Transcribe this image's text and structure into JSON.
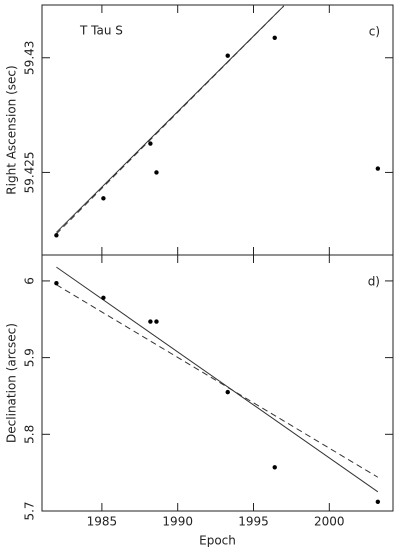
{
  "chart_data": [
    {
      "type": "scatter",
      "label": "T Tau S",
      "annotation": "c)",
      "ylabel": "Right Ascension (sec)",
      "x": [
        1982.0,
        1985.1,
        1988.2,
        1988.6,
        1993.3,
        1996.4,
        2003.2
      ],
      "values": [
        59.42226,
        59.42387,
        59.42626,
        59.425,
        59.43009,
        59.43087,
        59.42517
      ],
      "fits": [
        {
          "style": "solid",
          "x": [
            1982.0,
            1997.0
          ],
          "values": [
            59.42239,
            59.43226
          ]
        },
        {
          "style": "dashed",
          "x": [
            1982.0,
            1997.0
          ],
          "values": [
            59.42232,
            59.43226
          ]
        }
      ],
      "xlim": [
        1981.05,
        2004.2
      ],
      "xticks": [
        1985,
        1990,
        1995,
        2000
      ],
      "show_xtick_labels": false,
      "ylim": [
        59.4214,
        59.4323
      ],
      "yticks": [
        59.425,
        59.43
      ]
    },
    {
      "type": "scatter",
      "annotation": "d)",
      "ylabel": "Declination (arcsec)",
      "xlabel": "Epoch",
      "x": [
        1982.0,
        1985.1,
        1988.2,
        1988.6,
        1993.3,
        1996.4,
        2003.2
      ],
      "values": [
        5.997,
        5.978,
        5.947,
        5.947,
        5.855,
        5.757,
        5.712
      ],
      "fits": [
        {
          "style": "solid",
          "x": [
            1982.0,
            2003.2
          ],
          "values": [
            6.018,
            5.725
          ]
        },
        {
          "style": "dashed",
          "x": [
            1982.0,
            2003.2
          ],
          "values": [
            5.995,
            5.744
          ]
        }
      ],
      "xlim": [
        1981.05,
        2004.2
      ],
      "xticks": [
        1985,
        1990,
        1995,
        2000
      ],
      "show_xtick_labels": true,
      "ylim": [
        5.7,
        6.0338
      ],
      "yticks": [
        5.7,
        5.8,
        5.9,
        6
      ]
    }
  ]
}
